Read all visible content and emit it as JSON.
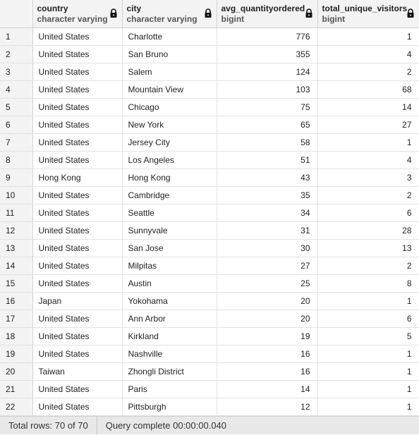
{
  "columns": [
    {
      "name": "country",
      "type": "character varying"
    },
    {
      "name": "city",
      "type": "character varying"
    },
    {
      "name": "avg_quantityordered",
      "type": "bigint"
    },
    {
      "name": "total_unique_visitors",
      "type": "bigint"
    }
  ],
  "rows": [
    [
      "1",
      "United States",
      "Charlotte",
      "776",
      "1"
    ],
    [
      "2",
      "United States",
      "San Bruno",
      "355",
      "4"
    ],
    [
      "3",
      "United States",
      "Salem",
      "124",
      "2"
    ],
    [
      "4",
      "United States",
      "Mountain View",
      "103",
      "68"
    ],
    [
      "5",
      "United States",
      "Chicago",
      "75",
      "14"
    ],
    [
      "6",
      "United States",
      "New York",
      "65",
      "27"
    ],
    [
      "7",
      "United States",
      "Jersey City",
      "58",
      "1"
    ],
    [
      "8",
      "United States",
      "Los Angeles",
      "51",
      "4"
    ],
    [
      "9",
      "Hong Kong",
      "Hong Kong",
      "43",
      "3"
    ],
    [
      "10",
      "United States",
      "Cambridge",
      "35",
      "2"
    ],
    [
      "11",
      "United States",
      "Seattle",
      "34",
      "6"
    ],
    [
      "12",
      "United States",
      "Sunnyvale",
      "31",
      "28"
    ],
    [
      "13",
      "United States",
      "San Jose",
      "30",
      "13"
    ],
    [
      "14",
      "United States",
      "Milpitas",
      "27",
      "2"
    ],
    [
      "15",
      "United States",
      "Austin",
      "25",
      "8"
    ],
    [
      "16",
      "Japan",
      "Yokohama",
      "20",
      "1"
    ],
    [
      "17",
      "United States",
      "Ann Arbor",
      "20",
      "6"
    ],
    [
      "18",
      "United States",
      "Kirkland",
      "19",
      "5"
    ],
    [
      "19",
      "United States",
      "Nashville",
      "16",
      "1"
    ],
    [
      "20",
      "Taiwan",
      "Zhongli District",
      "16",
      "1"
    ],
    [
      "21",
      "United States",
      "Paris",
      "14",
      "1"
    ],
    [
      "22",
      "United States",
      "Pittsburgh",
      "12",
      "1"
    ]
  ],
  "status": {
    "total_rows": "Total rows: 70 of 70",
    "query": "Query complete 00:00:00.040"
  },
  "icons": {
    "column_lock": "lock-icon"
  }
}
